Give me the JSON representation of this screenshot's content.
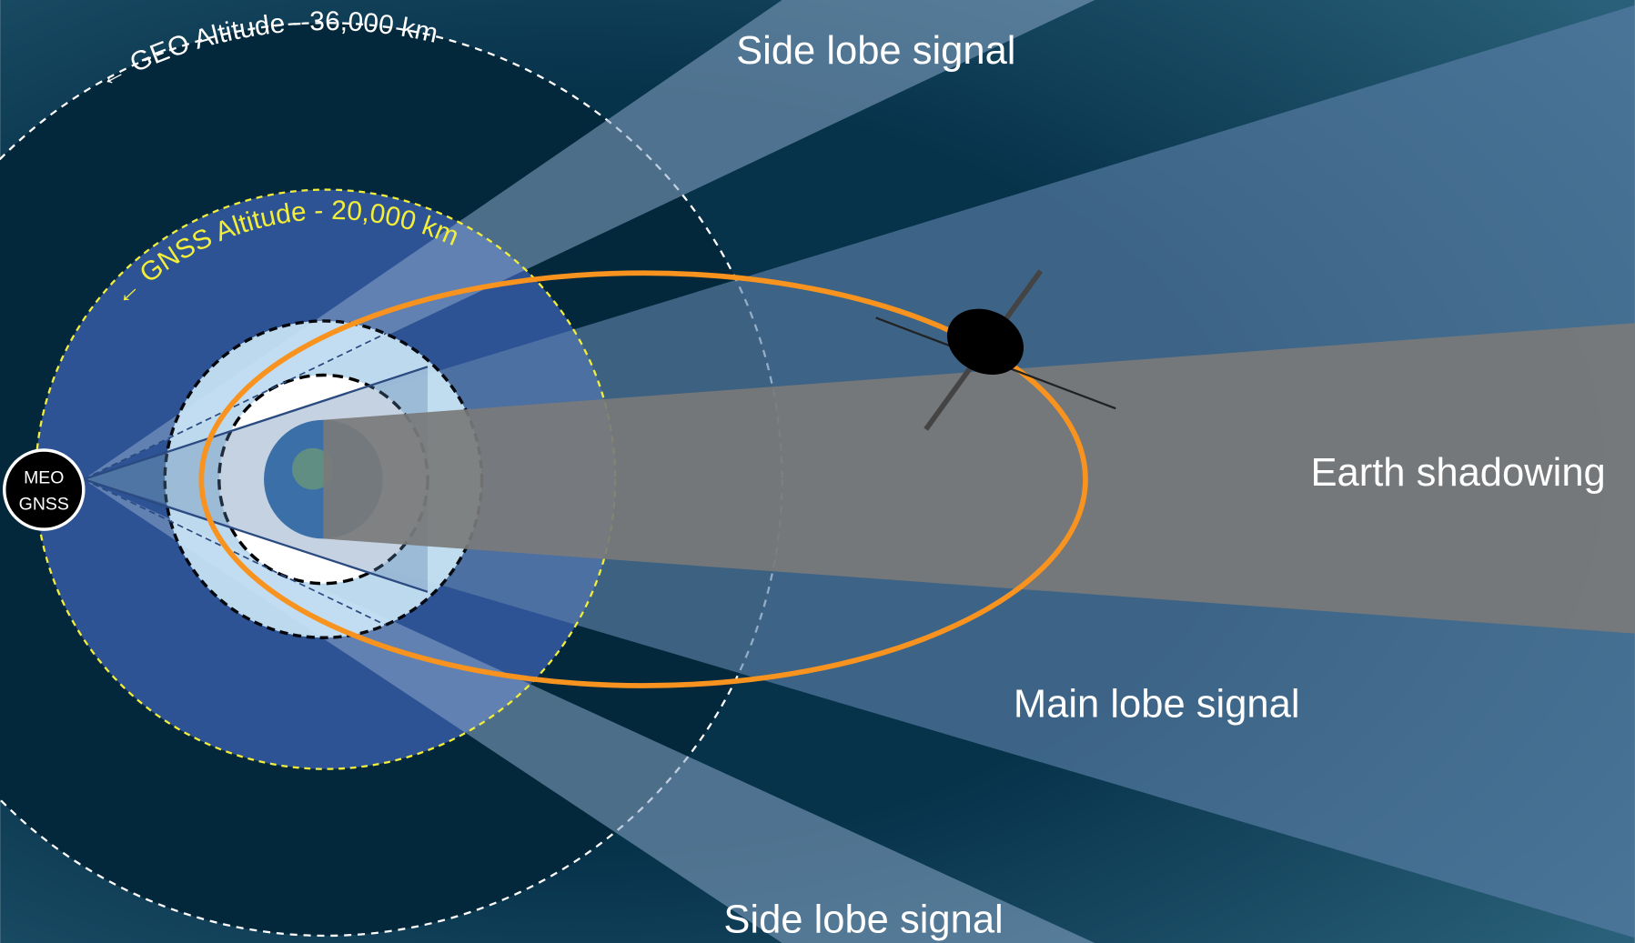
{
  "labels": {
    "geo_altitude": "← GEO Altitude - 36,000 km",
    "gnss_altitude": "← GNSS Altitude - 20,000 km",
    "meo_gnss": [
      "MEO",
      "GNSS"
    ],
    "side_lobe_top": "Side lobe signal",
    "side_lobe_bottom": "Side lobe signal",
    "earth_shadowing": "Earth shadowing",
    "main_lobe": "Main lobe signal"
  }
}
